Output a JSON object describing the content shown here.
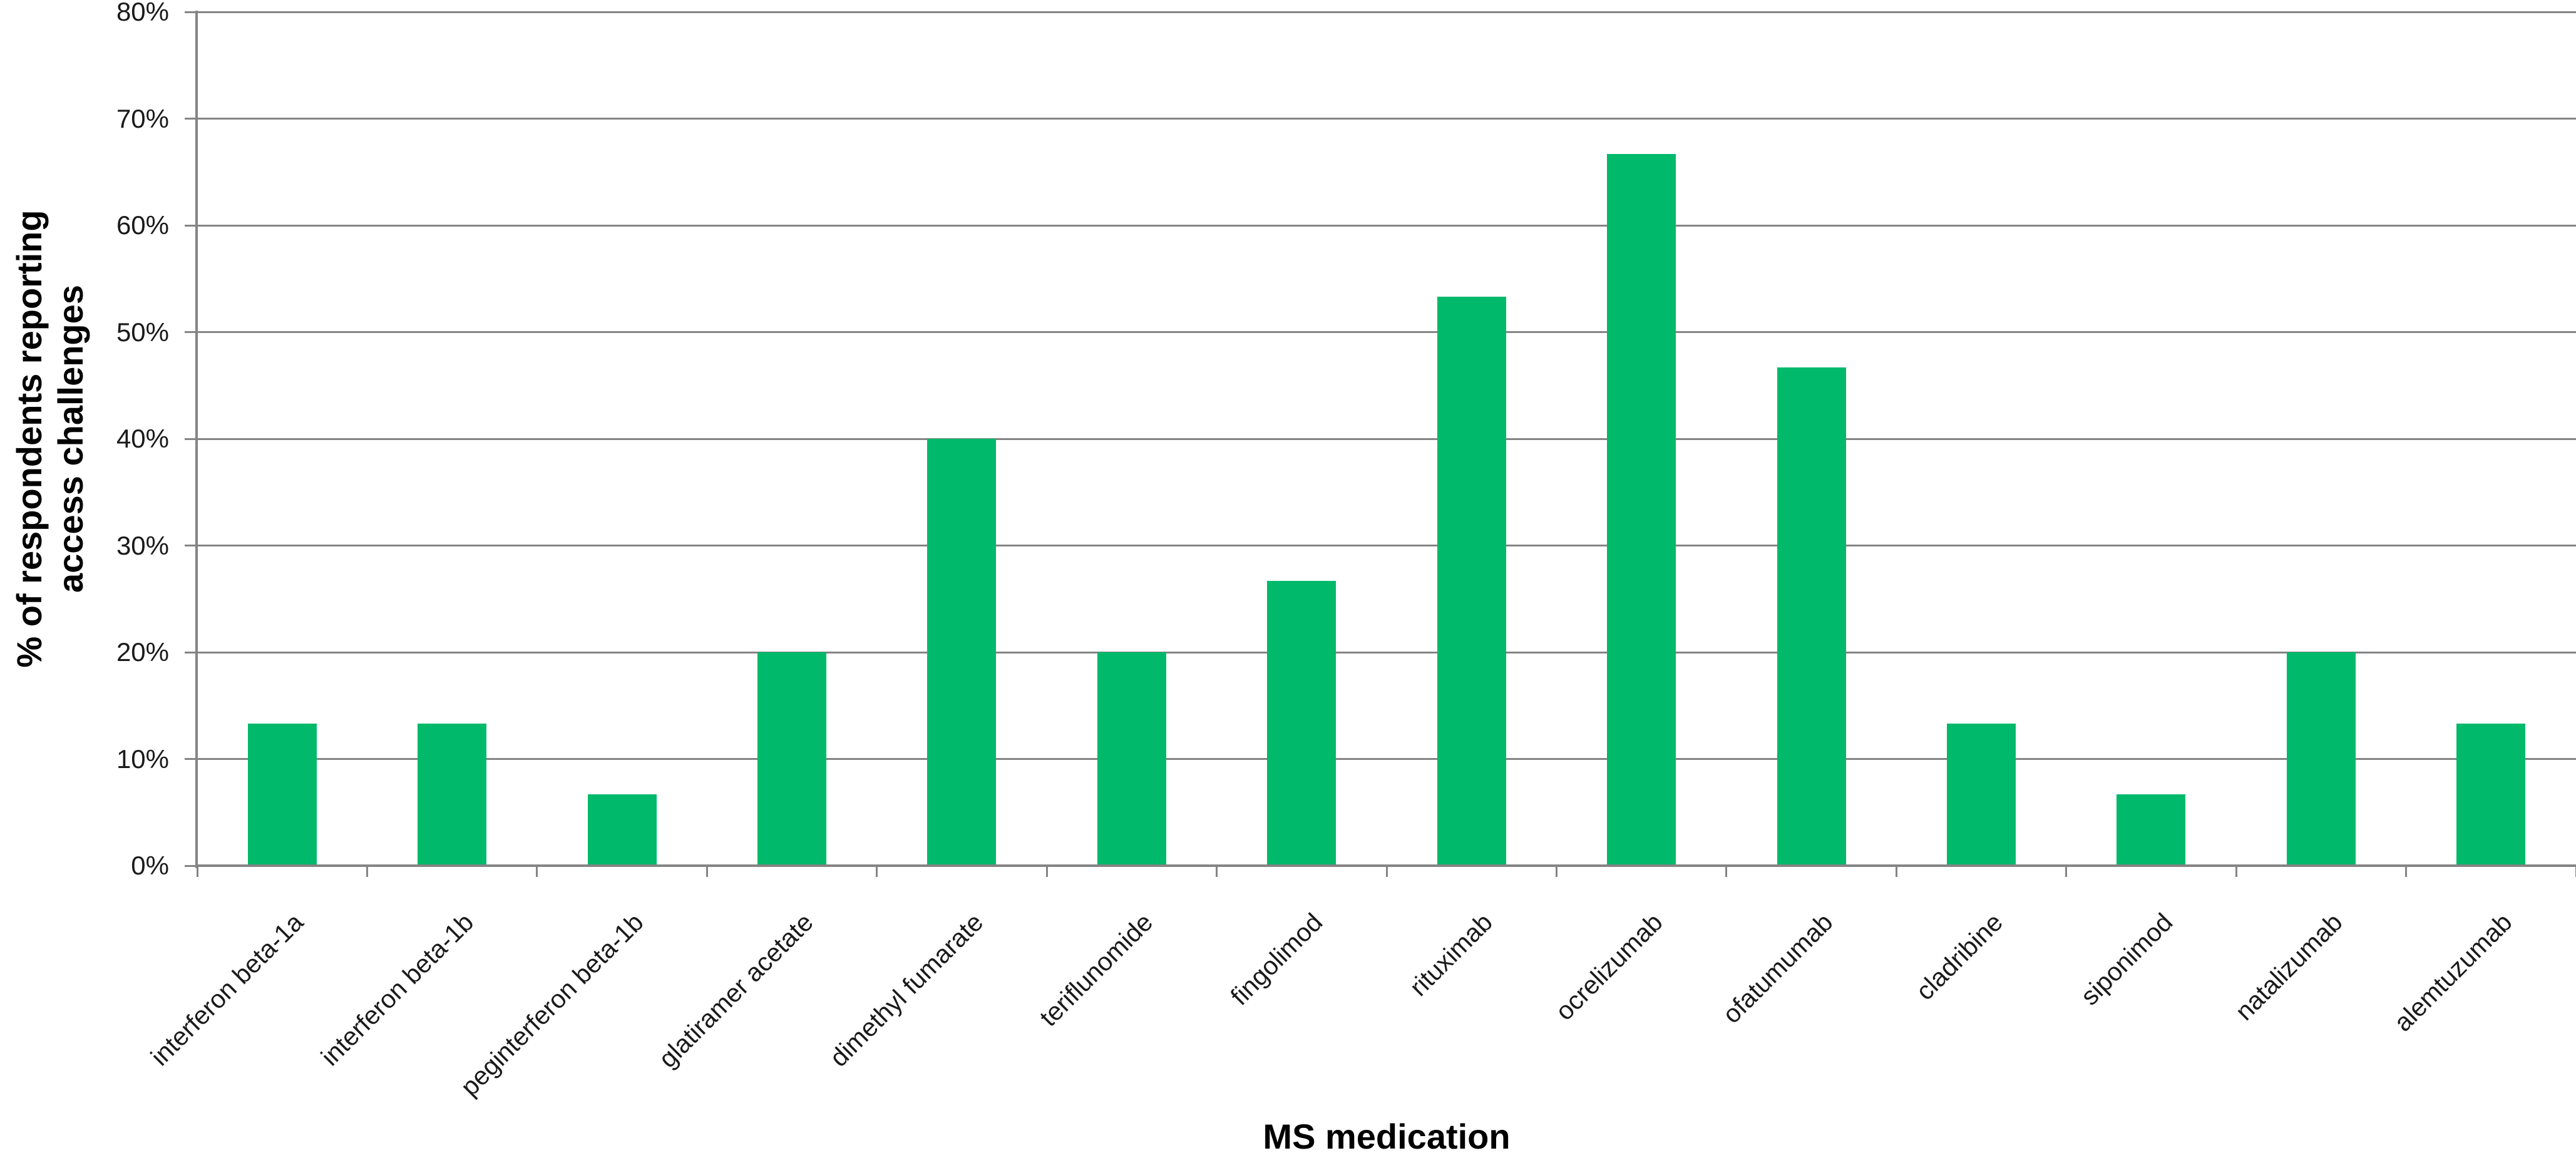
{
  "chart_data": {
    "type": "bar",
    "title": "",
    "xlabel": "MS medication",
    "ylabel": "% of respondents reporting access challenges",
    "ylabel_lines": [
      "% of respondents reporting",
      "access challenges"
    ],
    "categories": [
      "interferon beta-1a",
      "interferon beta-1b",
      "peginterferon beta-1b",
      "glatiramer acetate",
      "dimethyl fumarate",
      "teriflunomide",
      "fingolimod",
      "rituximab",
      "ocrelizumab",
      "ofatumumab",
      "cladribine",
      "siponimod",
      "natalizumab",
      "alemtuzumab"
    ],
    "values": [
      13.3,
      13.3,
      6.7,
      20,
      40,
      20,
      26.7,
      53.3,
      66.7,
      46.7,
      13.3,
      6.7,
      20,
      13.3
    ],
    "ymin": 0,
    "ymax": 80,
    "yticks": [
      {
        "value": 0,
        "label": "0%"
      },
      {
        "value": 10,
        "label": "10%"
      },
      {
        "value": 20,
        "label": "20%"
      },
      {
        "value": 30,
        "label": "30%"
      },
      {
        "value": 40,
        "label": "40%"
      },
      {
        "value": 50,
        "label": "50%"
      },
      {
        "value": 60,
        "label": "60%"
      },
      {
        "value": 70,
        "label": "70%"
      },
      {
        "value": 80,
        "label": "80%"
      }
    ],
    "grid": true,
    "legend": false,
    "bar_color": "#00B96B",
    "grid_color": "#848484",
    "axis_color": "#848484",
    "label_color": "#1a1a1a",
    "title_color": "#000000"
  }
}
